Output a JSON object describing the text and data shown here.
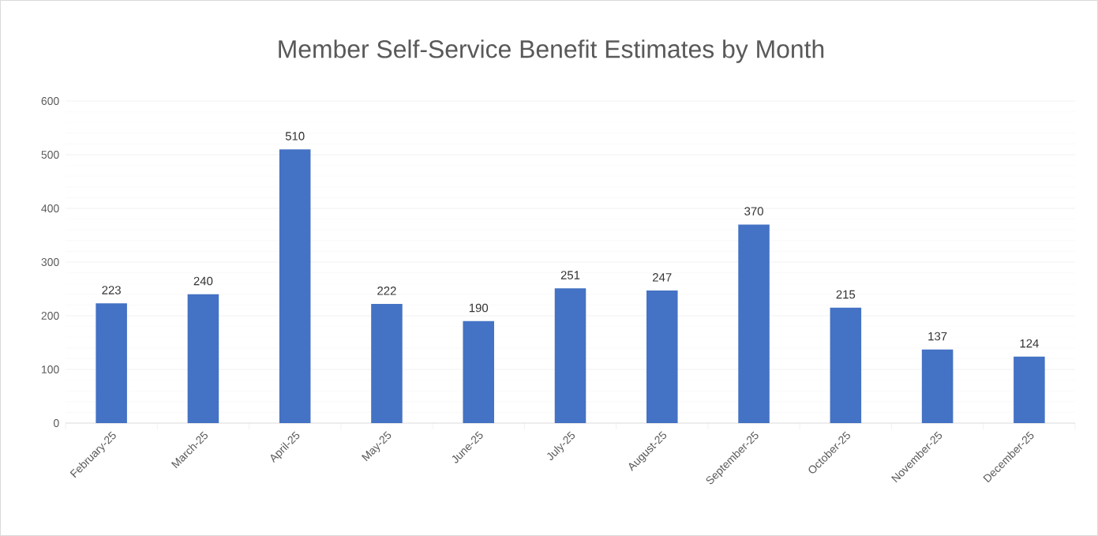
{
  "chart_data": {
    "type": "bar",
    "title": "Member Self-Service Benefit Estimates by Month",
    "categories": [
      "February-25",
      "March-25",
      "April-25",
      "May-25",
      "June-25",
      "July-25",
      "August-25",
      "September-25",
      "October-25",
      "November-25",
      "December-25"
    ],
    "values": [
      223,
      240,
      510,
      222,
      190,
      251,
      247,
      370,
      215,
      137,
      124
    ],
    "color": "#4472c4",
    "ylim": [
      0,
      600
    ],
    "yticks": [
      0,
      100,
      200,
      300,
      400,
      500,
      600
    ],
    "grid": "y",
    "data_labels": true
  }
}
